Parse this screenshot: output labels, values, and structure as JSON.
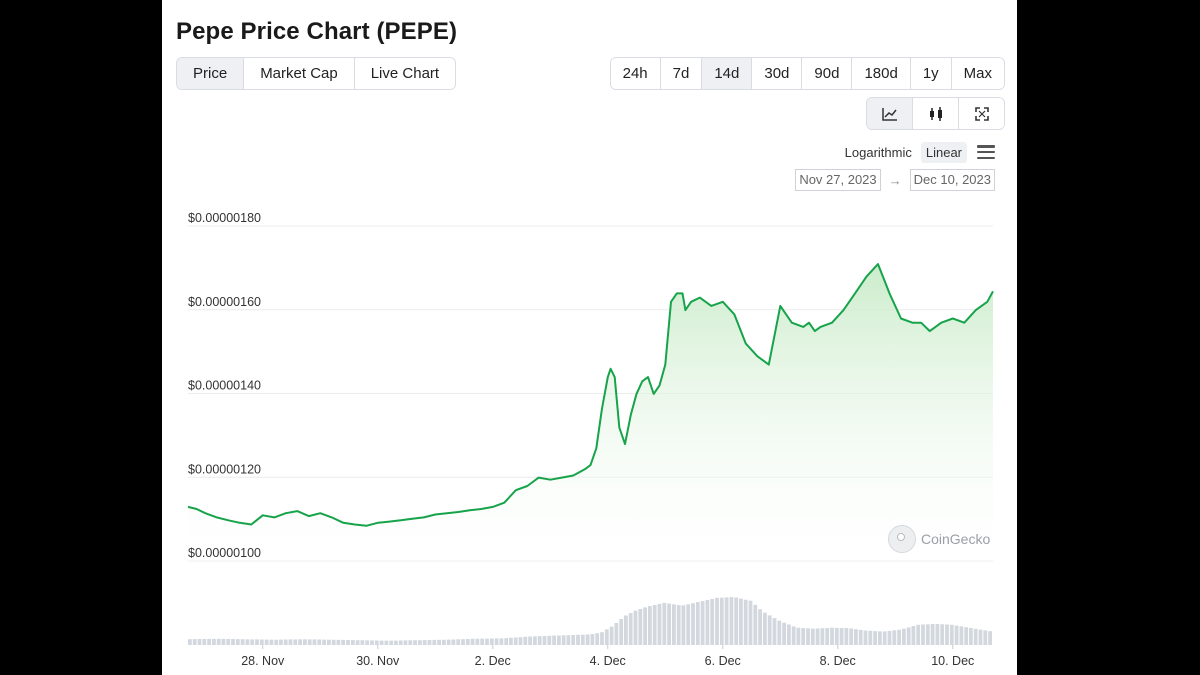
{
  "title": "Pepe Price Chart (PEPE)",
  "tabs": [
    {
      "label": "Price",
      "active": true
    },
    {
      "label": "Market Cap",
      "active": false
    },
    {
      "label": "Live Chart",
      "active": false
    }
  ],
  "ranges": [
    {
      "label": "24h",
      "active": false
    },
    {
      "label": "7d",
      "active": false
    },
    {
      "label": "14d",
      "active": true
    },
    {
      "label": "30d",
      "active": false
    },
    {
      "label": "90d",
      "active": false
    },
    {
      "label": "180d",
      "active": false
    },
    {
      "label": "1y",
      "active": false
    },
    {
      "label": "Max",
      "active": false
    }
  ],
  "views": [
    {
      "icon": "line-chart-icon",
      "active": true
    },
    {
      "icon": "candlestick-icon",
      "active": false
    },
    {
      "icon": "fullscreen-icon",
      "active": false
    }
  ],
  "scale": {
    "logarithmic": "Logarithmic",
    "linear": "Linear",
    "selected": "Linear"
  },
  "date_range": {
    "from": "Nov 27, 2023",
    "to": "Dec 10, 2023",
    "arrow": "→"
  },
  "watermark": "CoinGecko",
  "colors": {
    "line": "#16a34a",
    "fill_top": "#c9ebc9",
    "volume": "#d3d8de",
    "grid": "#ececec",
    "active_bg": "#eef0f3"
  },
  "chart_data": {
    "type": "line",
    "title": "Pepe Price Chart (PEPE)",
    "xlabel": "",
    "ylabel": "",
    "y_ticks": [
      {
        "value": 1.8e-06,
        "label": "$0.00000180"
      },
      {
        "value": 1.6e-06,
        "label": "$0.00000160"
      },
      {
        "value": 1.4e-06,
        "label": "$0.00000140"
      },
      {
        "value": 1.2e-06,
        "label": "$0.00000120"
      },
      {
        "value": 1e-06,
        "label": "$0.00000100"
      }
    ],
    "x_ticks": [
      {
        "x": 1.3,
        "label": "28. Nov"
      },
      {
        "x": 3.3,
        "label": "30. Nov"
      },
      {
        "x": 5.3,
        "label": "2. Dec"
      },
      {
        "x": 7.3,
        "label": "4. Dec"
      },
      {
        "x": 9.3,
        "label": "6. Dec"
      },
      {
        "x": 11.3,
        "label": "8. Dec"
      },
      {
        "x": 13.3,
        "label": "10. Dec"
      }
    ],
    "xlim": [
      0,
      14.0
    ],
    "ylim": [
      1e-06,
      1.8e-06
    ],
    "grid": true,
    "series": [
      {
        "x": [
          0.0,
          0.15,
          0.3,
          0.5,
          0.7,
          0.9,
          1.1,
          1.3,
          1.5,
          1.7,
          1.9,
          2.1,
          2.3,
          2.5,
          2.7,
          2.9,
          3.1,
          3.3,
          3.5,
          3.7,
          3.9,
          4.1,
          4.3,
          4.5,
          4.7,
          4.9,
          5.1,
          5.3,
          5.5,
          5.7,
          5.9,
          6.1,
          6.3,
          6.5,
          6.7,
          6.9,
          7.0,
          7.1,
          7.2,
          7.3,
          7.35,
          7.42,
          7.5,
          7.6,
          7.7,
          7.8,
          7.9,
          8.0,
          8.1,
          8.2,
          8.3,
          8.4,
          8.5,
          8.6,
          8.65,
          8.75,
          8.9,
          9.1,
          9.3,
          9.5,
          9.7,
          9.9,
          10.1,
          10.3,
          10.5,
          10.7,
          10.8,
          10.9,
          11.0,
          11.2,
          11.4,
          11.6,
          11.8,
          12.0,
          12.2,
          12.4,
          12.6,
          12.75,
          12.9,
          13.1,
          13.3,
          13.5,
          13.7,
          13.9,
          14.0
        ],
        "y": [
          1.11,
          1.105,
          1.095,
          1.085,
          1.078,
          1.072,
          1.068,
          1.09,
          1.085,
          1.095,
          1.1,
          1.088,
          1.095,
          1.085,
          1.072,
          1.068,
          1.065,
          1.072,
          1.075,
          1.078,
          1.082,
          1.085,
          1.092,
          1.095,
          1.098,
          1.102,
          1.105,
          1.11,
          1.12,
          1.15,
          1.16,
          1.18,
          1.175,
          1.18,
          1.185,
          1.2,
          1.21,
          1.25,
          1.345,
          1.42,
          1.44,
          1.42,
          1.3,
          1.26,
          1.33,
          1.38,
          1.41,
          1.42,
          1.38,
          1.4,
          1.45,
          1.6,
          1.62,
          1.62,
          1.58,
          1.6,
          1.61,
          1.59,
          1.6,
          1.57,
          1.5,
          1.47,
          1.45,
          1.59,
          1.55,
          1.54,
          1.55,
          1.53,
          1.54,
          1.55,
          1.58,
          1.62,
          1.66,
          1.69,
          1.62,
          1.56,
          1.55,
          1.55,
          1.53,
          1.55,
          1.56,
          1.55,
          1.58,
          1.6,
          1.625
        ]
      }
    ],
    "y_unit_scale": 1e-06,
    "volume_series": {
      "x": [
        0.0,
        0.5,
        1.0,
        1.5,
        2.0,
        2.5,
        3.0,
        3.5,
        4.0,
        4.5,
        5.0,
        5.5,
        6.0,
        6.5,
        7.0,
        7.2,
        7.4,
        7.6,
        7.8,
        8.0,
        8.3,
        8.6,
        8.9,
        9.2,
        9.5,
        9.8,
        10.0,
        10.3,
        10.6,
        10.9,
        11.2,
        11.5,
        11.8,
        12.1,
        12.4,
        12.7,
        13.0,
        13.3,
        13.6,
        14.0
      ],
      "values": [
        0.12,
        0.13,
        0.12,
        0.11,
        0.12,
        0.11,
        0.1,
        0.09,
        0.1,
        0.11,
        0.13,
        0.14,
        0.18,
        0.2,
        0.22,
        0.26,
        0.4,
        0.6,
        0.72,
        0.8,
        0.88,
        0.82,
        0.9,
        0.98,
        1.0,
        0.92,
        0.7,
        0.5,
        0.36,
        0.34,
        0.36,
        0.35,
        0.3,
        0.28,
        0.32,
        0.42,
        0.44,
        0.42,
        0.36,
        0.28
      ]
    }
  }
}
